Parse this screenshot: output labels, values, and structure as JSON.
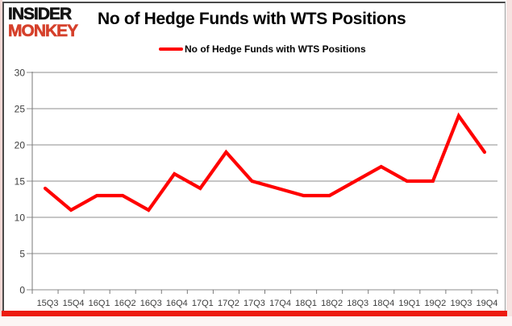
{
  "logo": {
    "line1": "INSIDER",
    "line2": "MONKEY",
    "line1_color": "#141414",
    "line2_color": "#d5402b"
  },
  "header": {
    "title": "No of Hedge Funds with WTS Positions"
  },
  "legend": {
    "label": "No of Hedge Funds with WTS Positions",
    "swatch_color": "#ff0000"
  },
  "chart_data": {
    "type": "line",
    "title": "No of Hedge Funds with WTS Positions",
    "categories": [
      "15Q3",
      "15Q4",
      "16Q1",
      "16Q2",
      "16Q3",
      "16Q4",
      "17Q1",
      "17Q2",
      "17Q3",
      "17Q4",
      "18Q1",
      "18Q2",
      "18Q3",
      "18Q4",
      "19Q1",
      "19Q2",
      "19Q3",
      "19Q4"
    ],
    "series": [
      {
        "name": "No of Hedge Funds with WTS Positions",
        "values": [
          14,
          11,
          13,
          13,
          11,
          16,
          14,
          19,
          15,
          14,
          13,
          13,
          15,
          17,
          15,
          15,
          24,
          19
        ],
        "color": "#ff0000"
      }
    ],
    "xlabel": "",
    "ylabel": "",
    "ylim": [
      0,
      30
    ],
    "ytick_step": 5,
    "grid": "horizontal",
    "legend_position": "top"
  },
  "colors": {
    "series_line": "#ff0000",
    "bottom_bar": "#ed1b10",
    "gridline": "#8c8c8c",
    "axis_line": "#7a7a7a",
    "axis_text": "#3d3d3d",
    "frame_border": "#4a4a4a"
  }
}
